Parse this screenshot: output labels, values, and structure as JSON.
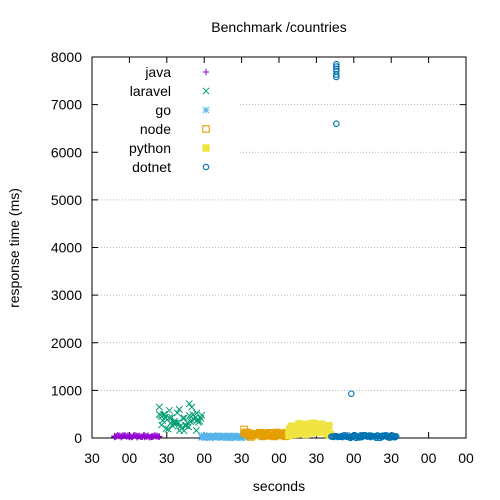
{
  "chart_data": {
    "type": "scatter",
    "title": "Benchmark /countries",
    "xlabel": "seconds",
    "ylabel": "response time (ms)",
    "ylim": [
      0,
      8000
    ],
    "yticks": [
      0,
      1000,
      2000,
      3000,
      4000,
      5000,
      6000,
      7000,
      8000
    ],
    "x_unit": "seconds elapsed",
    "xlim": [
      0,
      150
    ],
    "xticks": [
      0,
      15,
      30,
      45,
      60,
      75,
      90,
      105,
      120,
      135,
      150
    ],
    "xtick_labels": [
      "30",
      "00",
      "30",
      "00",
      "30",
      "00",
      "30",
      "00",
      "30",
      "00",
      "00"
    ],
    "grid": {
      "y": true,
      "x": false
    },
    "legend_position": "top-left",
    "series": [
      {
        "name": "java",
        "marker": "plus",
        "color": "#9400d3",
        "x_range": [
          9,
          27
        ],
        "typical_ms": [
          10,
          60
        ],
        "points": [
          [
            9,
            20
          ],
          [
            12,
            30
          ],
          [
            15,
            25
          ],
          [
            18,
            40
          ],
          [
            21,
            20
          ],
          [
            24,
            35
          ],
          [
            27,
            30
          ]
        ]
      },
      {
        "name": "laravel",
        "marker": "cross",
        "color": "#009e73",
        "x_range": [
          27,
          44
        ],
        "typical_ms": [
          150,
          550
        ],
        "points": [
          [
            27,
            650
          ],
          [
            28,
            450
          ],
          [
            29,
            500
          ],
          [
            31,
            580
          ],
          [
            33,
            350
          ],
          [
            35,
            600
          ],
          [
            37,
            420
          ],
          [
            39,
            720
          ],
          [
            40,
            650
          ],
          [
            42,
            520
          ],
          [
            44,
            480
          ]
        ]
      },
      {
        "name": "go",
        "marker": "asterisk",
        "color": "#56b4e9",
        "x_range": [
          44,
          61
        ],
        "typical_ms": [
          0,
          50
        ],
        "points": [
          [
            44,
            20
          ],
          [
            47,
            25
          ],
          [
            50,
            15
          ],
          [
            53,
            30
          ],
          [
            56,
            20
          ],
          [
            59,
            25
          ],
          [
            61,
            20
          ]
        ]
      },
      {
        "name": "node",
        "marker": "open-square",
        "color": "#e69f00",
        "x_range": [
          61,
          79
        ],
        "typical_ms": [
          20,
          120
        ],
        "points": [
          [
            61,
            180
          ],
          [
            62,
            100
          ],
          [
            65,
            90
          ],
          [
            68,
            100
          ],
          [
            71,
            110
          ],
          [
            74,
            100
          ],
          [
            77,
            90
          ],
          [
            79,
            100
          ]
        ]
      },
      {
        "name": "python",
        "marker": "filled-square",
        "color": "#f0e442",
        "x_range": [
          79,
          96
        ],
        "typical_ms": [
          50,
          300
        ],
        "points": [
          [
            79,
            160
          ],
          [
            80,
            250
          ],
          [
            83,
            300
          ],
          [
            86,
            280
          ],
          [
            89,
            310
          ],
          [
            92,
            290
          ],
          [
            95,
            260
          ]
        ]
      },
      {
        "name": "dotnet",
        "marker": "open-circle",
        "color": "#0072b2",
        "x_range": [
          96,
          122
        ],
        "typical_ms": [
          0,
          60
        ],
        "points": [
          [
            98,
            6600
          ],
          [
            98,
            7580
          ],
          [
            98,
            7630
          ],
          [
            98,
            7700
          ],
          [
            98,
            7750
          ],
          [
            98,
            7800
          ],
          [
            98,
            7850
          ],
          [
            104,
            930
          ],
          [
            105,
            40
          ],
          [
            108,
            30
          ],
          [
            112,
            40
          ],
          [
            116,
            30
          ],
          [
            120,
            40
          ],
          [
            122,
            35
          ]
        ]
      }
    ]
  }
}
